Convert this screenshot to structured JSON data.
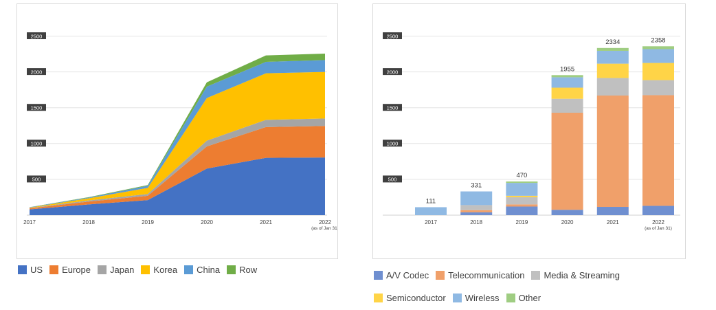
{
  "chart_data": [
    {
      "type": "area",
      "stacked": true,
      "categories": [
        "2017",
        "2018",
        "2019",
        "2020",
        "2021",
        "2022"
      ],
      "category_sublabels": [
        "",
        "",
        "",
        "",
        "",
        "(as of Jan 31)"
      ],
      "y_ticks": [
        500,
        1000,
        1500,
        2000,
        2500
      ],
      "ylim": [
        0,
        2500
      ],
      "grid": true,
      "legend_position": "bottom",
      "series": [
        {
          "name": "US",
          "color": "#4472c4",
          "values": [
            80,
            150,
            210,
            650,
            800,
            805
          ]
        },
        {
          "name": "Europe",
          "color": "#ed7d31",
          "values": [
            15,
            40,
            60,
            310,
            430,
            440
          ]
        },
        {
          "name": "Japan",
          "color": "#a5a5a5",
          "values": [
            5,
            15,
            25,
            80,
            100,
            105
          ]
        },
        {
          "name": "Korea",
          "color": "#ffc000",
          "values": [
            5,
            30,
            85,
            595,
            650,
            650
          ]
        },
        {
          "name": "China",
          "color": "#5b9bd5",
          "values": [
            5,
            10,
            30,
            160,
            160,
            165
          ]
        },
        {
          "name": "Row",
          "color": "#70ad47",
          "values": [
            1,
            6,
            10,
            60,
            90,
            90
          ]
        }
      ]
    },
    {
      "type": "bar",
      "stacked": true,
      "categories": [
        "2017",
        "2018",
        "2019",
        "2020",
        "2021",
        "2022"
      ],
      "category_sublabels": [
        "",
        "",
        "",
        "",
        "",
        "(as of Jan 31)"
      ],
      "totals": [
        111,
        331,
        470,
        1955,
        2334,
        2358
      ],
      "y_ticks": [
        500,
        1000,
        1500,
        2000,
        2500
      ],
      "ylim": [
        0,
        2500
      ],
      "grid": true,
      "legend_position": "bottom",
      "series": [
        {
          "name": "A/V Codec",
          "color": "#6f8fd0",
          "values": [
            0,
            40,
            120,
            75,
            115,
            130
          ]
        },
        {
          "name": "Telecommunication",
          "color": "#f0a06a",
          "values": [
            0,
            30,
            30,
            1355,
            1555,
            1545
          ]
        },
        {
          "name": "Media & Streaming",
          "color": "#c0c0c0",
          "values": [
            0,
            70,
            100,
            195,
            245,
            210
          ]
        },
        {
          "name": "Semiconductor",
          "color": "#ffd447",
          "values": [
            0,
            0,
            20,
            155,
            200,
            240
          ]
        },
        {
          "name": "Wireless",
          "color": "#8fb9e3",
          "values": [
            111,
            191,
            180,
            145,
            179,
            193
          ]
        },
        {
          "name": "Other",
          "color": "#9fcd82",
          "values": [
            0,
            0,
            20,
            30,
            40,
            40
          ]
        }
      ]
    }
  ]
}
